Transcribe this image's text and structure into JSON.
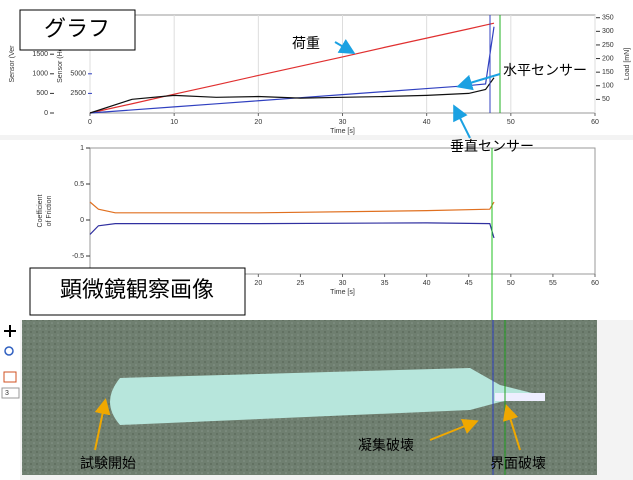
{
  "labels": {
    "graph": "グラフ",
    "microscope": "顕微鏡観察画像",
    "load": "荷重",
    "horizontal": "水平センサー",
    "vertical": "垂直センサー",
    "start": "試験開始",
    "cohesive": "凝集破壊",
    "interface": "界面破壊"
  },
  "toolbar": {
    "zoom": "3"
  },
  "chart_data": [
    {
      "type": "line",
      "xlabel": "Time [s]",
      "ylabel": "Sensor (Ver",
      "y3label": "Sensor (Hor",
      "y2label": "Load [mN]",
      "x": [
        0,
        5,
        10,
        15,
        20,
        25,
        30,
        35,
        40,
        45,
        47,
        48,
        48.5
      ],
      "xlim": [
        0,
        60
      ],
      "xticks": [
        0,
        10,
        20,
        30,
        40,
        50,
        60
      ],
      "ylim": [
        0,
        2500
      ],
      "yticks": [
        0,
        500,
        1000,
        1500
      ],
      "y3lim": [
        0,
        12500
      ],
      "y3ticks": [
        2500,
        5000
      ],
      "y2lim": [
        0,
        360
      ],
      "y2ticks": [
        50,
        100,
        150,
        200,
        250,
        300,
        350
      ],
      "grid": true,
      "series": [
        {
          "color": "#e03030",
          "axis": "y2",
          "values": [
            0,
            34,
            69,
            103,
            138,
            172,
            206,
            241,
            275,
            309,
            323,
            330,
            null
          ]
        },
        {
          "color": "#3040c0",
          "axis": "y3",
          "values": [
            0,
            390,
            780,
            1170,
            1560,
            1950,
            2340,
            2730,
            3120,
            3500,
            3700,
            11000,
            null
          ]
        },
        {
          "color": "#101010",
          "values": [
            0,
            350,
            450,
            400,
            420,
            380,
            400,
            420,
            450,
            500,
            600,
            900,
            null
          ]
        }
      ]
    },
    {
      "type": "line",
      "xlabel": "Time [s]",
      "ylabel": [
        "Coefficient",
        "of Friction"
      ],
      "x": [
        0,
        1,
        3,
        20,
        40,
        47.5,
        48,
        48.5
      ],
      "xlim": [
        0,
        60
      ],
      "xticks": [
        20,
        25,
        30,
        35,
        40,
        45,
        50,
        55,
        60
      ],
      "ylim": [
        -0.75,
        1
      ],
      "yticks": [
        1,
        0.5,
        0,
        -0.5
      ],
      "grid": false,
      "series": [
        {
          "color": "#e07020",
          "values": [
            0.25,
            0.15,
            0.1,
            0.1,
            0.13,
            0.15,
            0.25,
            null
          ]
        },
        {
          "color": "#3030a0",
          "values": [
            -0.2,
            -0.08,
            -0.05,
            -0.05,
            -0.04,
            -0.05,
            -0.25,
            null
          ]
        }
      ]
    }
  ]
}
